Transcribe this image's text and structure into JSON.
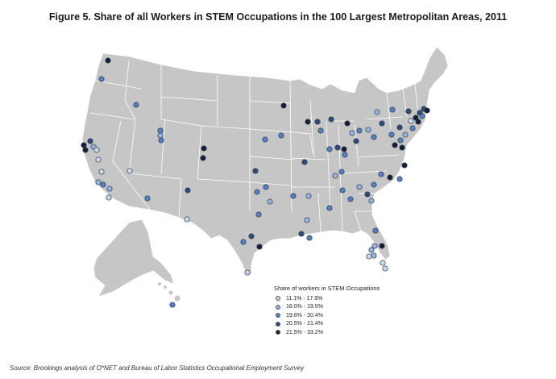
{
  "title": "Figure 5. Share of all Workers in STEM Occupations in the 100 Largest Metropolitan Areas, 2011",
  "source": "Source: Brookings analysis of O*NET and Bureau of Labor Statistics Occupational Employment Survey",
  "legend": {
    "title": "Share of workers in STEM Occupations",
    "classes": [
      {
        "label": "11.1% - 17.9%",
        "color": "#c3d8f2"
      },
      {
        "label": "18.0% - 19.5%",
        "color": "#8fb3e3"
      },
      {
        "label": "19.6% - 20.4%",
        "color": "#4f80c8"
      },
      {
        "label": "20.5% - 21.4%",
        "color": "#2c4c7f"
      },
      {
        "label": "21.5% - 33.2%",
        "color": "#0f1f40"
      }
    ]
  },
  "map_colors": {
    "land": "#c6c6c6",
    "border": "#ffffff",
    "marker_stroke": "#3a3a3a"
  }
}
